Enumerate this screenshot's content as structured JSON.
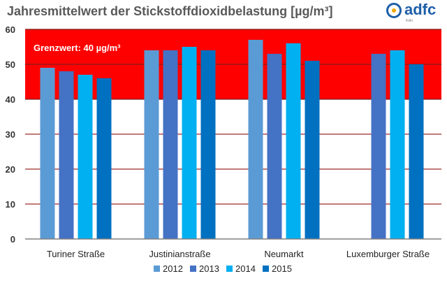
{
  "logo": {
    "text": "adfc",
    "sub": "Köln"
  },
  "colors": {
    "limit_zone": "#ff0000",
    "gridline": "#7f1d1d",
    "axis": "#808080",
    "series": [
      "#5b9bd5",
      "#4472c4",
      "#00b0f0",
      "#0070c0"
    ]
  },
  "chart_data": {
    "type": "bar",
    "title": "Jahresmittelwert der Stickstoffdioxidbelastung [µg/m³]",
    "xlabel": "",
    "ylabel": "",
    "ylim": [
      0,
      60
    ],
    "yticks": [
      "0",
      "10",
      "20",
      "30",
      "40",
      "50",
      "60"
    ],
    "categories": [
      "Turiner Straße",
      "Justinianstraße",
      "Neumarkt",
      "Luxemburger Straße"
    ],
    "series": [
      {
        "name": "2012",
        "values": [
          49,
          54,
          57,
          null
        ]
      },
      {
        "name": "2013",
        "values": [
          48,
          54,
          53,
          53
        ]
      },
      {
        "name": "2014",
        "values": [
          47,
          55,
          56,
          54
        ]
      },
      {
        "name": "2015",
        "values": [
          46,
          54,
          51,
          50
        ]
      }
    ],
    "threshold": {
      "label": "Grenzwert: 40 µg/m³",
      "from": 40,
      "to": 60
    },
    "legend_position": "bottom-center",
    "grid": true
  }
}
